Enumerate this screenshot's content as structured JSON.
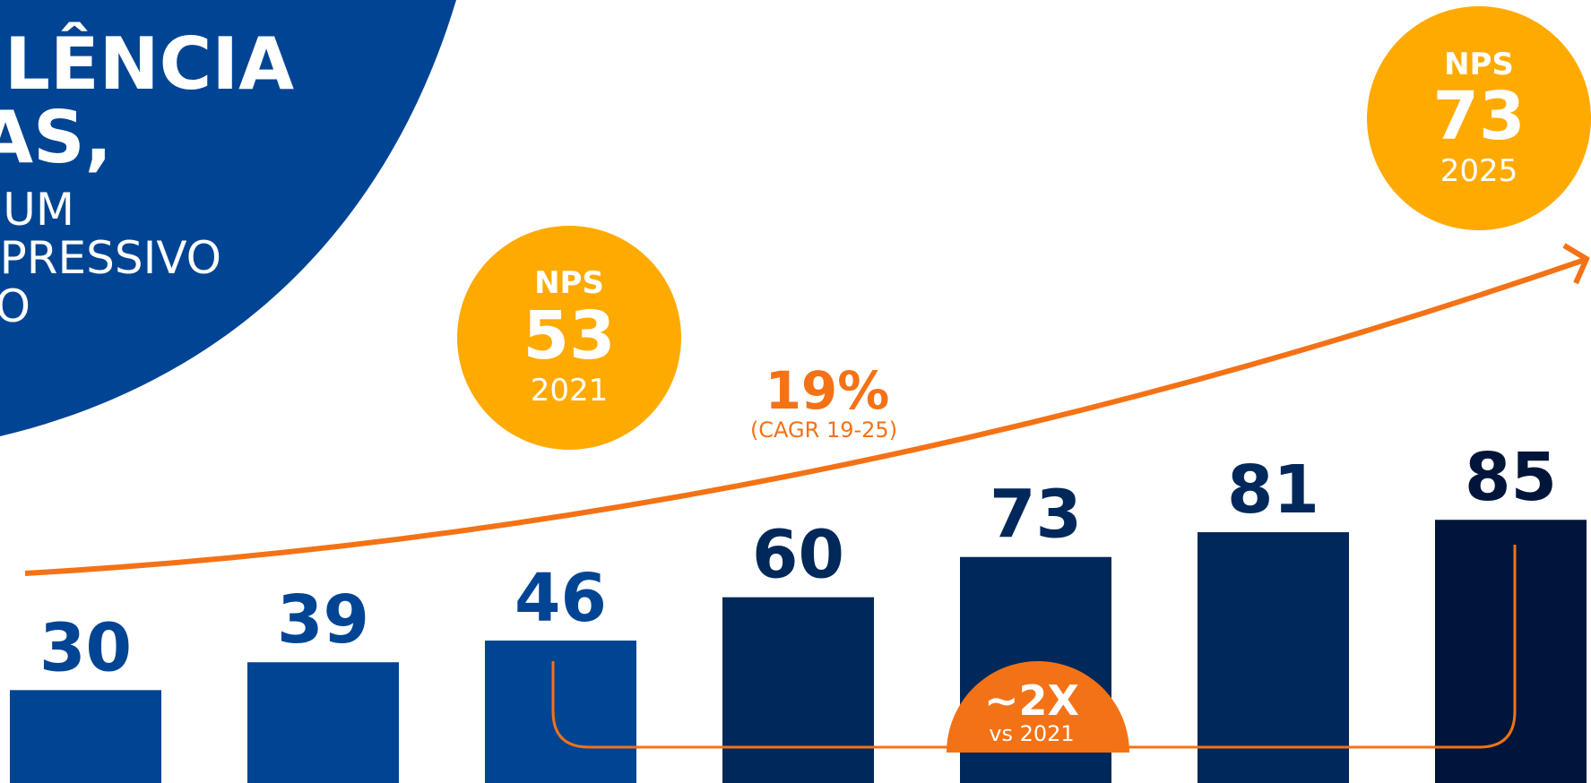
{
  "chart_data": {
    "type": "bar",
    "title_lines": [
      "ELÊNCIA",
      "AS,",
      "UM",
      "XPRESSIVO",
      "O"
    ],
    "values": [
      30,
      39,
      46,
      60,
      73,
      81,
      85
    ],
    "colors": [
      "#004494",
      "#004494",
      "#004494",
      "#00285a",
      "#00285a",
      "#00285a",
      "#00153a"
    ],
    "annotations": [
      {
        "label": "NPS",
        "value": 53,
        "year": "2021"
      },
      {
        "label": "NPS",
        "value": 73,
        "year": "2025"
      }
    ],
    "growth": {
      "text": "19%",
      "note": "(CAGR 19-25)"
    },
    "multiple": {
      "text": "~2X",
      "note": "vs 2021"
    }
  }
}
